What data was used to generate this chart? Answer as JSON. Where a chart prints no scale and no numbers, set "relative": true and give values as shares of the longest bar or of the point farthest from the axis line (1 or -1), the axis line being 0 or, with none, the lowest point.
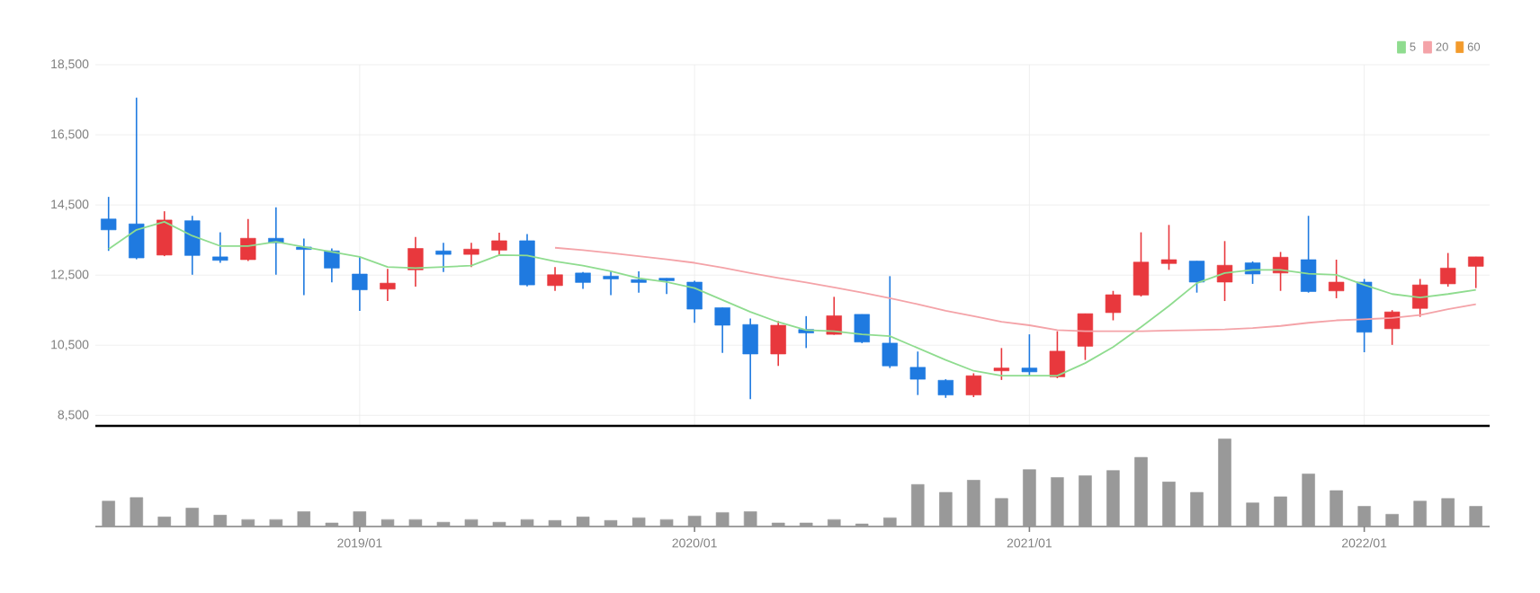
{
  "chart_data": [
    {
      "type": "candlestick",
      "x": [
        "2018-04",
        "2018-05",
        "2018-06",
        "2018-07",
        "2018-08",
        "2018-09",
        "2018-10",
        "2018-11",
        "2018-12",
        "2019-01",
        "2019-02",
        "2019-03",
        "2019-04",
        "2019-05",
        "2019-06",
        "2019-07",
        "2019-08",
        "2019-09",
        "2019-10",
        "2019-11",
        "2019-12",
        "2020-01",
        "2020-02",
        "2020-03",
        "2020-04",
        "2020-05",
        "2020-06",
        "2020-07",
        "2020-08",
        "2020-09",
        "2020-10",
        "2020-11",
        "2020-12",
        "2021-01",
        "2021-02",
        "2021-03",
        "2021-04",
        "2021-05",
        "2021-06",
        "2021-07",
        "2021-08",
        "2021-09",
        "2021-10",
        "2021-11",
        "2021-12",
        "2022-01",
        "2022-02",
        "2022-03",
        "2022-04",
        "2022-05"
      ],
      "ohlc": [
        [
          14100,
          14730,
          13190,
          13790
        ],
        [
          13960,
          17560,
          12950,
          12990
        ],
        [
          13070,
          14320,
          13040,
          14070
        ],
        [
          14050,
          14190,
          12510,
          13060
        ],
        [
          13020,
          13720,
          12850,
          12920
        ],
        [
          12940,
          14100,
          12900,
          13550
        ],
        [
          13550,
          14430,
          12510,
          13420
        ],
        [
          13300,
          13540,
          11930,
          13230
        ],
        [
          13190,
          13260,
          12290,
          12700
        ],
        [
          12530,
          13020,
          11480,
          12080
        ],
        [
          12100,
          12680,
          11760,
          12270
        ],
        [
          12650,
          13590,
          12170,
          13260
        ],
        [
          13190,
          13420,
          12590,
          13090
        ],
        [
          13090,
          13420,
          12730,
          13240
        ],
        [
          13210,
          13710,
          13070,
          13480
        ],
        [
          13480,
          13670,
          12180,
          12220
        ],
        [
          12200,
          12730,
          12050,
          12510
        ],
        [
          12560,
          12590,
          12110,
          12290
        ],
        [
          12470,
          12610,
          11930,
          12390
        ],
        [
          12370,
          12610,
          12000,
          12290
        ],
        [
          12410,
          12410,
          11960,
          12340
        ],
        [
          12300,
          12340,
          11140,
          11530
        ],
        [
          11570,
          11570,
          10280,
          11070
        ],
        [
          11090,
          11260,
          8960,
          10250
        ],
        [
          10250,
          11190,
          9910,
          11070
        ],
        [
          10950,
          11330,
          10420,
          10850
        ],
        [
          10810,
          11880,
          10800,
          11340
        ],
        [
          11380,
          11380,
          10560,
          10590
        ],
        [
          10560,
          12470,
          9850,
          9910
        ],
        [
          9870,
          10320,
          9080,
          9530
        ],
        [
          9500,
          9530,
          9000,
          9080
        ],
        [
          9080,
          9700,
          9020,
          9630
        ],
        [
          9770,
          10420,
          9510,
          9850
        ],
        [
          9850,
          10810,
          9630,
          9740
        ],
        [
          9600,
          10900,
          9560,
          10330
        ],
        [
          10470,
          11400,
          10080,
          11400
        ],
        [
          11430,
          12050,
          11210,
          11940
        ],
        [
          11930,
          13720,
          11890,
          12870
        ],
        [
          12830,
          13930,
          12650,
          12940
        ],
        [
          12900,
          12900,
          12000,
          12300
        ],
        [
          12300,
          13470,
          11760,
          12780
        ],
        [
          12850,
          12890,
          12250,
          12530
        ],
        [
          12560,
          13160,
          12050,
          13010
        ],
        [
          12940,
          14190,
          12000,
          12030
        ],
        [
          12050,
          12940,
          11840,
          12300
        ],
        [
          12300,
          12390,
          10300,
          10870
        ],
        [
          10970,
          11500,
          10510,
          11450
        ],
        [
          11550,
          12390,
          11310,
          12220
        ],
        [
          12250,
          13130,
          12170,
          12700
        ],
        [
          12750,
          13020,
          12130,
          13020
        ]
      ],
      "colors": [
        "#1f7ae0",
        "#1f7ae0",
        "#e8383d",
        "#1f7ae0",
        "#1f7ae0",
        "#e8383d",
        "#1f7ae0",
        "#1f7ae0",
        "#1f7ae0",
        "#1f7ae0",
        "#e8383d",
        "#e8383d",
        "#1f7ae0",
        "#e8383d",
        "#e8383d",
        "#1f7ae0",
        "#e8383d",
        "#1f7ae0",
        "#1f7ae0",
        "#1f7ae0",
        "#1f7ae0",
        "#1f7ae0",
        "#1f7ae0",
        "#1f7ae0",
        "#e8383d",
        "#1f7ae0",
        "#e8383d",
        "#1f7ae0",
        "#1f7ae0",
        "#1f7ae0",
        "#1f7ae0",
        "#e8383d",
        "#e8383d",
        "#1f7ae0",
        "#e8383d",
        "#e8383d",
        "#e8383d",
        "#e8383d",
        "#e8383d",
        "#1f7ae0",
        "#e8383d",
        "#1f7ae0",
        "#e8383d",
        "#1f7ae0",
        "#e8383d",
        "#1f7ae0",
        "#e8383d",
        "#e8383d",
        "#e8383d",
        "#e8383d"
      ],
      "series": [
        {
          "name": "5",
          "type": "line",
          "color": "#8fdc8f",
          "values": [
            13240,
            13790,
            14020,
            13620,
            13330,
            13330,
            13450,
            13300,
            13160,
            13020,
            12730,
            12700,
            12730,
            12770,
            13070,
            13060,
            12890,
            12770,
            12610,
            12410,
            12300,
            12130,
            11790,
            11450,
            11160,
            10930,
            10900,
            10810,
            10760,
            10420,
            10080,
            9770,
            9630,
            9630,
            9630,
            9990,
            10450,
            11020,
            11620,
            12270,
            12560,
            12650,
            12650,
            12540,
            12510,
            12220,
            11960,
            11860,
            11960,
            12080
          ]
        },
        {
          "name": "20",
          "type": "line",
          "color": "#f4a3a8",
          "values": [
            null,
            null,
            null,
            null,
            null,
            null,
            null,
            null,
            null,
            null,
            null,
            null,
            null,
            null,
            null,
            null,
            13280,
            13210,
            13130,
            13040,
            12950,
            12850,
            12710,
            12560,
            12420,
            12290,
            12150,
            12000,
            11840,
            11670,
            11480,
            11330,
            11170,
            11070,
            10930,
            10900,
            10900,
            10900,
            10920,
            10930,
            10950,
            10990,
            11050,
            11140,
            11210,
            11240,
            11280,
            11360,
            11530,
            11670
          ]
        },
        {
          "name": "60",
          "type": "line",
          "color": "#f39a2b",
          "values": [
            null,
            null,
            null,
            null,
            null,
            null,
            null,
            null,
            null,
            null,
            null,
            null,
            null,
            null,
            null,
            null,
            null,
            null,
            null,
            null,
            null,
            null,
            null,
            null,
            null,
            null,
            null,
            null,
            null,
            null,
            null,
            null,
            null,
            null,
            null,
            null,
            null,
            null,
            null,
            null,
            null,
            null,
            null,
            null,
            null,
            null,
            null,
            null,
            null,
            null
          ]
        }
      ],
      "xlim": [
        "2018-03-17",
        "2022-05-16"
      ],
      "xticks": [
        {
          "value": "2019-01",
          "label": null
        },
        {
          "value": "2020-01",
          "label": null
        },
        {
          "value": "2021-01",
          "label": null
        },
        {
          "value": "2022-01",
          "label": null
        }
      ],
      "ylim": [
        8200,
        18500
      ],
      "yticks": [
        {
          "value": 8500,
          "label": "8,500"
        },
        {
          "value": 10500,
          "label": "10,500"
        },
        {
          "value": 12500,
          "label": "12,500"
        },
        {
          "value": 14500,
          "label": "14,500"
        },
        {
          "value": 16500,
          "label": "16,500"
        },
        {
          "value": 18500,
          "label": "18,500"
        }
      ],
      "grid": true,
      "legend": "top right",
      "tick_labels": "y"
    },
    {
      "type": "bar",
      "relative": true,
      "color": "#999999",
      "x": [
        "2018-04",
        "2018-05",
        "2018-06",
        "2018-07",
        "2018-08",
        "2018-09",
        "2018-10",
        "2018-11",
        "2018-12",
        "2019-01",
        "2019-02",
        "2019-03",
        "2019-04",
        "2019-05",
        "2019-06",
        "2019-07",
        "2019-08",
        "2019-09",
        "2019-10",
        "2019-11",
        "2019-12",
        "2020-01",
        "2020-02",
        "2020-03",
        "2020-04",
        "2020-05",
        "2020-06",
        "2020-07",
        "2020-08",
        "2020-09",
        "2020-10",
        "2020-11",
        "2020-12",
        "2021-01",
        "2021-02",
        "2021-03",
        "2021-04",
        "2021-05",
        "2021-06",
        "2021-07",
        "2021-08",
        "2021-09",
        "2021-10",
        "2021-11",
        "2021-12",
        "2022-01",
        "2022-02",
        "2022-03",
        "2022-04",
        "2022-05"
      ],
      "values": [
        0.29,
        0.33,
        0.11,
        0.21,
        0.13,
        0.08,
        0.08,
        0.17,
        0.04,
        0.17,
        0.08,
        0.08,
        0.05,
        0.08,
        0.05,
        0.08,
        0.07,
        0.11,
        0.07,
        0.1,
        0.08,
        0.12,
        0.16,
        0.17,
        0.04,
        0.04,
        0.08,
        0.03,
        0.1,
        0.48,
        0.39,
        0.53,
        0.32,
        0.65,
        0.56,
        0.58,
        0.64,
        0.79,
        0.51,
        0.39,
        1,
        0.27,
        0.34,
        0.6,
        0.41,
        0.23,
        0.14,
        0.29,
        0.32,
        0.23
      ],
      "xlim": [
        "2018-03-17",
        "2022-05-16"
      ],
      "xticks": [
        {
          "value": "2019-01",
          "label": "2019/01"
        },
        {
          "value": "2020-01",
          "label": "2020/01"
        },
        {
          "value": "2021-01",
          "label": "2021/01"
        },
        {
          "value": "2022-01",
          "label": "2022/01"
        }
      ],
      "tick_labels": "x"
    }
  ]
}
